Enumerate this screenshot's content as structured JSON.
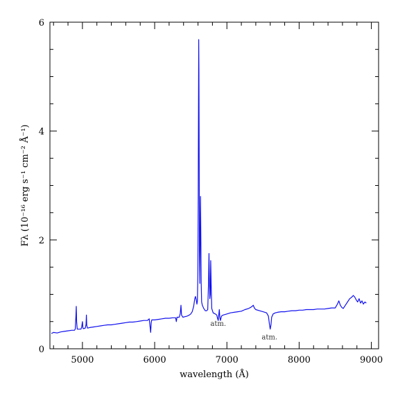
{
  "chart_data": {
    "type": "line",
    "xlabel": "wavelength (Å)",
    "ylabel": "Fλ (10⁻¹⁶ erg s⁻¹ cm⁻² Å⁻¹)",
    "xlim": [
      4550,
      9100
    ],
    "ylim": [
      0,
      6
    ],
    "x_ticks": [
      5000,
      6000,
      7000,
      8000,
      9000
    ],
    "y_ticks": [
      0,
      2,
      4,
      6
    ],
    "x_tick_labels": [
      "5000",
      "6000",
      "7000",
      "8000",
      "9000"
    ],
    "y_tick_labels": [
      "0",
      "2",
      "4",
      "6"
    ],
    "grid": false,
    "line_color": "#1010ee",
    "annotations": [
      {
        "text": "atm.",
        "x": 6880,
        "y": 0.42
      },
      {
        "text": "atm.",
        "x": 7590,
        "y": 0.17
      }
    ],
    "series": [
      {
        "points": [
          [
            4570,
            0.28
          ],
          [
            4600,
            0.3
          ],
          [
            4650,
            0.29
          ],
          [
            4700,
            0.31
          ],
          [
            4750,
            0.32
          ],
          [
            4800,
            0.33
          ],
          [
            4850,
            0.34
          ],
          [
            4890,
            0.34
          ],
          [
            4900,
            0.36
          ],
          [
            4910,
            0.6
          ],
          [
            4915,
            0.78
          ],
          [
            4920,
            0.5
          ],
          [
            4928,
            0.36
          ],
          [
            4950,
            0.36
          ],
          [
            4980,
            0.36
          ],
          [
            4990,
            0.4
          ],
          [
            5000,
            0.5
          ],
          [
            5007,
            0.38
          ],
          [
            5015,
            0.37
          ],
          [
            5040,
            0.38
          ],
          [
            5050,
            0.45
          ],
          [
            5055,
            0.62
          ],
          [
            5060,
            0.43
          ],
          [
            5070,
            0.38
          ],
          [
            5100,
            0.39
          ],
          [
            5150,
            0.4
          ],
          [
            5200,
            0.41
          ],
          [
            5250,
            0.42
          ],
          [
            5300,
            0.43
          ],
          [
            5350,
            0.44
          ],
          [
            5400,
            0.44
          ],
          [
            5450,
            0.45
          ],
          [
            5500,
            0.46
          ],
          [
            5550,
            0.47
          ],
          [
            5600,
            0.48
          ],
          [
            5650,
            0.49
          ],
          [
            5700,
            0.49
          ],
          [
            5750,
            0.5
          ],
          [
            5800,
            0.51
          ],
          [
            5850,
            0.52
          ],
          [
            5900,
            0.52
          ],
          [
            5925,
            0.55
          ],
          [
            5935,
            0.42
          ],
          [
            5945,
            0.3
          ],
          [
            5952,
            0.48
          ],
          [
            5960,
            0.53
          ],
          [
            6000,
            0.53
          ],
          [
            6050,
            0.54
          ],
          [
            6100,
            0.55
          ],
          [
            6150,
            0.56
          ],
          [
            6200,
            0.56
          ],
          [
            6250,
            0.57
          ],
          [
            6290,
            0.57
          ],
          [
            6300,
            0.5
          ],
          [
            6310,
            0.58
          ],
          [
            6340,
            0.58
          ],
          [
            6355,
            0.65
          ],
          [
            6364,
            0.8
          ],
          [
            6372,
            0.62
          ],
          [
            6390,
            0.58
          ],
          [
            6420,
            0.59
          ],
          [
            6450,
            0.6
          ],
          [
            6480,
            0.62
          ],
          [
            6500,
            0.64
          ],
          [
            6520,
            0.68
          ],
          [
            6540,
            0.78
          ],
          [
            6555,
            0.92
          ],
          [
            6565,
            0.96
          ],
          [
            6575,
            0.9
          ],
          [
            6585,
            0.82
          ],
          [
            6592,
            0.88
          ],
          [
            6598,
            1.4
          ],
          [
            6603,
            2.8
          ],
          [
            6607,
            4.5
          ],
          [
            6610,
            5.68
          ],
          [
            6613,
            5.1
          ],
          [
            6617,
            3.4
          ],
          [
            6620,
            1.8
          ],
          [
            6625,
            1.2
          ],
          [
            6630,
            2.2
          ],
          [
            6635,
            2.8
          ],
          [
            6640,
            2.0
          ],
          [
            6645,
            1.2
          ],
          [
            6650,
            0.86
          ],
          [
            6660,
            0.8
          ],
          [
            6680,
            0.74
          ],
          [
            6700,
            0.7
          ],
          [
            6720,
            0.7
          ],
          [
            6735,
            0.72
          ],
          [
            6745,
            1.2
          ],
          [
            6752,
            1.75
          ],
          [
            6758,
            1.3
          ],
          [
            6764,
            0.92
          ],
          [
            6770,
            1.0
          ],
          [
            6776,
            1.62
          ],
          [
            6782,
            1.2
          ],
          [
            6790,
            0.74
          ],
          [
            6810,
            0.66
          ],
          [
            6840,
            0.64
          ],
          [
            6860,
            0.62
          ],
          [
            6870,
            0.56
          ],
          [
            6880,
            0.52
          ],
          [
            6885,
            0.6
          ],
          [
            6895,
            0.72
          ],
          [
            6902,
            0.58
          ],
          [
            6910,
            0.52
          ],
          [
            6925,
            0.6
          ],
          [
            6950,
            0.62
          ],
          [
            7000,
            0.64
          ],
          [
            7050,
            0.66
          ],
          [
            7100,
            0.67
          ],
          [
            7150,
            0.68
          ],
          [
            7200,
            0.69
          ],
          [
            7250,
            0.72
          ],
          [
            7300,
            0.74
          ],
          [
            7330,
            0.76
          ],
          [
            7350,
            0.78
          ],
          [
            7365,
            0.8
          ],
          [
            7380,
            0.75
          ],
          [
            7400,
            0.72
          ],
          [
            7450,
            0.7
          ],
          [
            7500,
            0.68
          ],
          [
            7550,
            0.66
          ],
          [
            7575,
            0.6
          ],
          [
            7590,
            0.44
          ],
          [
            7600,
            0.36
          ],
          [
            7610,
            0.44
          ],
          [
            7620,
            0.58
          ],
          [
            7640,
            0.64
          ],
          [
            7670,
            0.66
          ],
          [
            7700,
            0.67
          ],
          [
            7750,
            0.68
          ],
          [
            7800,
            0.68
          ],
          [
            7850,
            0.69
          ],
          [
            7900,
            0.7
          ],
          [
            7950,
            0.7
          ],
          [
            8000,
            0.71
          ],
          [
            8050,
            0.71
          ],
          [
            8100,
            0.72
          ],
          [
            8150,
            0.72
          ],
          [
            8200,
            0.72
          ],
          [
            8250,
            0.73
          ],
          [
            8300,
            0.73
          ],
          [
            8350,
            0.73
          ],
          [
            8400,
            0.74
          ],
          [
            8450,
            0.75
          ],
          [
            8500,
            0.75
          ],
          [
            8530,
            0.82
          ],
          [
            8550,
            0.88
          ],
          [
            8570,
            0.8
          ],
          [
            8590,
            0.76
          ],
          [
            8610,
            0.74
          ],
          [
            8640,
            0.8
          ],
          [
            8670,
            0.86
          ],
          [
            8700,
            0.92
          ],
          [
            8730,
            0.95
          ],
          [
            8750,
            0.98
          ],
          [
            8770,
            0.95
          ],
          [
            8790,
            0.9
          ],
          [
            8810,
            0.86
          ],
          [
            8830,
            0.92
          ],
          [
            8850,
            0.84
          ],
          [
            8870,
            0.88
          ],
          [
            8890,
            0.82
          ],
          [
            8910,
            0.86
          ],
          [
            8930,
            0.84
          ]
        ]
      }
    ]
  }
}
